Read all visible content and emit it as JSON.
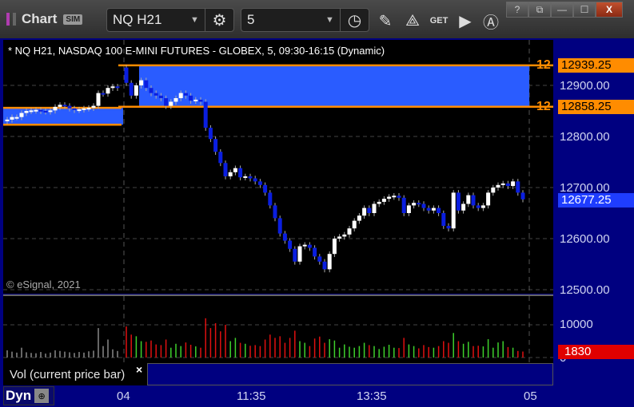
{
  "titlebar": {
    "app_name": "Chart",
    "sim_badge": "SIM",
    "symbol": "NQ H21",
    "interval": "5",
    "icons": [
      "settings-gear-icon",
      "clock-icon",
      "pencil-icon",
      "study-icon",
      "get-icon",
      "play-icon",
      "alert-icon"
    ],
    "window_buttons": {
      "help": "?",
      "layout": "⧉",
      "minimize": "—",
      "maximize": "☐",
      "close": "X"
    }
  },
  "chart": {
    "title": "* NQ H21, NASDAQ 100 E-MINI FUTURES - GLOBEX, 5, 09:30-16:15 (Dynamic)",
    "copyright": "© eSignal, 2021",
    "price_ticks": [
      "12900.00",
      "12800.00",
      "12700.00",
      "12600.00",
      "12500.00"
    ],
    "levels": [
      {
        "marker": "12",
        "price": "12939.25",
        "color": "#ff8c00"
      },
      {
        "marker": "12",
        "price": "12858.25",
        "color": "#ff8c00"
      }
    ],
    "last_price": "12677.25",
    "last_price_color": "#1f3dff",
    "zone_color": "#2a5cff",
    "time_ticks": [
      "04",
      "11:35",
      "13:35",
      "05"
    ]
  },
  "volume": {
    "legend": "Vol (current price bar)",
    "close_icon": "×",
    "ticks": [
      "10000",
      "0"
    ],
    "current": "1830",
    "current_color": "#e00000"
  },
  "footer": {
    "dyn_label": "Dyn"
  },
  "chart_data": {
    "type": "candlestick",
    "ylim": [
      12500,
      12960
    ],
    "prev_session": {
      "closes": [
        12833,
        12838,
        12838,
        12846,
        12850,
        12851,
        12852,
        12850,
        12849,
        12851,
        12858,
        12862,
        12860,
        12855,
        12852,
        12853,
        12855,
        12856,
        12860,
        12885,
        12884,
        12895,
        12898,
        12895
      ],
      "volumes": [
        2200,
        1800,
        1500,
        3000,
        1600,
        1400,
        1300,
        1700,
        1200,
        1500,
        2200,
        2000,
        1800,
        1600,
        1400,
        1700,
        1500,
        1900,
        2100,
        9000,
        3500,
        5500,
        2500,
        2000
      ]
    },
    "session": {
      "first_open": 12935,
      "closes": [
        12905,
        12880,
        12900,
        12910,
        12895,
        12885,
        12880,
        12875,
        12860,
        12868,
        12875,
        12885,
        12880,
        12870,
        12872,
        12868,
        12817,
        12795,
        12770,
        12748,
        12722,
        12730,
        12738,
        12720,
        12722,
        12718,
        12712,
        12705,
        12690,
        12665,
        12640,
        12610,
        12596,
        12580,
        12555,
        12585,
        12588,
        12582,
        12565,
        12555,
        12540,
        12570,
        12600,
        12604,
        12608,
        12620,
        12635,
        12645,
        12660,
        12650,
        12668,
        12672,
        12678,
        12682,
        12684,
        12680,
        12650,
        12665,
        12670,
        12668,
        12660,
        12655,
        12660,
        12650,
        12625,
        12620,
        12690,
        12655,
        12668,
        12685,
        12665,
        12660,
        12665,
        12690,
        12700,
        12705,
        12708,
        12703,
        12712,
        12690,
        12677
      ],
      "volumes": [
        9500,
        7000,
        6500,
        5000,
        4800,
        5200,
        4000,
        3800,
        5500,
        3000,
        4200,
        3500,
        4600,
        3900,
        3400,
        3000,
        12000,
        9000,
        10500,
        8000,
        10000,
        5000,
        6000,
        4500,
        4200,
        3600,
        3800,
        3500,
        5500,
        7000,
        6000,
        6500,
        4500,
        6000,
        8200,
        5000,
        4500,
        3500,
        5800,
        6400,
        4500,
        5600,
        5200,
        3000,
        4000,
        3300,
        3000,
        3500,
        4500,
        3800,
        3500,
        2600,
        3300,
        3900,
        3000,
        2900,
        6000,
        4000,
        3500,
        2800,
        3800,
        3200,
        3000,
        3500,
        5000,
        4500,
        7500,
        5000,
        4200,
        4800,
        3500,
        3600,
        3400,
        5600,
        3000,
        4600,
        5000,
        3200,
        3000,
        2000,
        1830
      ]
    }
  }
}
